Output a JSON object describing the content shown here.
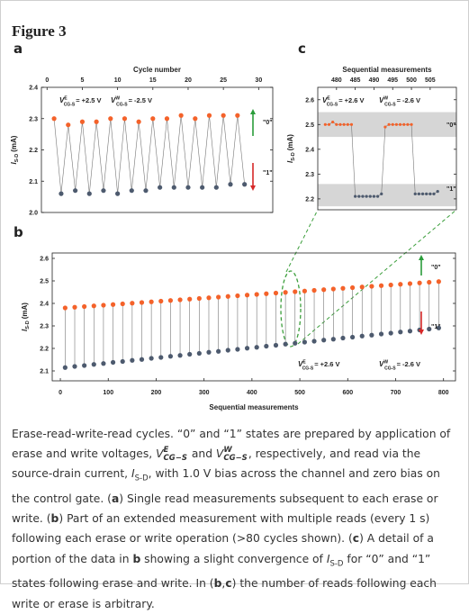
{
  "figure_label": "Figure 3",
  "chart_data": [
    {
      "type": "line",
      "panel_label": "a",
      "x_label": "Cycle number",
      "y_label": {
        "symbol": "I",
        "sub": "S-D",
        "unit": "(mA)"
      },
      "xlim": [
        -0.8,
        32
      ],
      "xticks": [
        0,
        5,
        10,
        15,
        20,
        25,
        30
      ],
      "ylim": [
        2.0,
        2.4
      ],
      "yticks": [
        {
          "value": 2.0,
          "label": "2.0"
        },
        2.1,
        2.2,
        2.3,
        2.4
      ],
      "series": [
        {
          "color": "#f4622a",
          "x": [
            1,
            3,
            5,
            7,
            9,
            11,
            13,
            15,
            17,
            19,
            21,
            23,
            25,
            27
          ],
          "values": [
            2.3,
            2.28,
            2.29,
            2.29,
            2.3,
            2.3,
            2.29,
            2.3,
            2.3,
            2.31,
            2.3,
            2.31,
            2.31,
            2.31
          ]
        },
        {
          "color": "#4d5a6e",
          "x": [
            2,
            4,
            6,
            8,
            10,
            12,
            14,
            16,
            18,
            20,
            22,
            24,
            26,
            28
          ],
          "values": [
            2.06,
            2.07,
            2.06,
            2.07,
            2.06,
            2.07,
            2.07,
            2.08,
            2.08,
            2.08,
            2.08,
            2.08,
            2.09,
            2.09
          ]
        }
      ],
      "voltages": [
        {
          "symbol": "V",
          "sup": "E",
          "sub": "CG-S",
          "text": "= +2.5 V"
        },
        {
          "symbol": "V",
          "sup": "W",
          "sub": "CG-S",
          "text": "= -2.5 V"
        }
      ],
      "state_labels": [
        "\"0\"",
        "\"1\""
      ]
    },
    {
      "type": "dumbbell",
      "panel_label": "b",
      "x_label": "Sequential measurements",
      "y_label": {
        "symbol": "I",
        "sub": "S-D",
        "unit": "(mA)"
      },
      "xlim": [
        -17,
        825
      ],
      "xticks": [
        0,
        100,
        200,
        300,
        400,
        500,
        600,
        700,
        800
      ],
      "ylim": [
        2.056,
        2.624
      ],
      "yticks": [
        2.1,
        2.2,
        2.3,
        2.4,
        2.5,
        2.6
      ],
      "x": [
        10,
        30,
        50,
        70,
        90,
        110,
        130,
        150,
        170,
        190,
        210,
        230,
        250,
        270,
        290,
        310,
        330,
        350,
        370,
        390,
        410,
        430,
        450,
        470,
        490,
        510,
        530,
        550,
        570,
        590,
        610,
        630,
        650,
        670,
        690,
        710,
        730,
        750,
        770,
        790
      ],
      "series": [
        {
          "color": "#f4622a",
          "values": [
            2.38,
            2.383,
            2.386,
            2.389,
            2.392,
            2.395,
            2.398,
            2.401,
            2.404,
            2.407,
            2.41,
            2.413,
            2.416,
            2.419,
            2.422,
            2.425,
            2.428,
            2.431,
            2.434,
            2.437,
            2.44,
            2.443,
            2.446,
            2.449,
            2.452,
            2.455,
            2.458,
            2.461,
            2.464,
            2.467,
            2.47,
            2.473,
            2.476,
            2.479,
            2.482,
            2.485,
            2.488,
            2.491,
            2.494,
            2.497
          ]
        },
        {
          "color": "#4d5a6e",
          "values": [
            2.115,
            2.12,
            2.124,
            2.129,
            2.133,
            2.138,
            2.142,
            2.147,
            2.151,
            2.156,
            2.16,
            2.165,
            2.169,
            2.174,
            2.178,
            2.183,
            2.187,
            2.192,
            2.196,
            2.201,
            2.205,
            2.21,
            2.214,
            2.219,
            2.223,
            2.228,
            2.232,
            2.237,
            2.241,
            2.246,
            2.25,
            2.255,
            2.259,
            2.264,
            2.268,
            2.273,
            2.277,
            2.282,
            2.286,
            2.291
          ]
        }
      ],
      "voltages": [
        {
          "symbol": "V",
          "sup": "E",
          "sub": "CG-S",
          "text": "= +2.6 V"
        },
        {
          "symbol": "V",
          "sup": "W",
          "sub": "CG-S",
          "text": "= -2.6 V"
        }
      ],
      "state_labels": [
        "\"0\"",
        "\"1\""
      ]
    },
    {
      "type": "line",
      "panel_label": "c",
      "x_label": "Sequential measurements",
      "y_label": {
        "symbol": "I",
        "sub": "S-D",
        "unit": "(mA)"
      },
      "xlim": [
        475,
        512
      ],
      "xticks": [
        480,
        485,
        490,
        495,
        500,
        505
      ],
      "ylim": [
        2.156,
        2.65
      ],
      "yticks": [
        2.2,
        2.3,
        2.4,
        2.5,
        2.6
      ],
      "bands": [
        [
          2.45,
          2.55
        ],
        [
          2.17,
          2.26
        ]
      ],
      "x": [
        477,
        478,
        479,
        480,
        481,
        482,
        483,
        484,
        485,
        486,
        487,
        488,
        489,
        490,
        491,
        492,
        493,
        494,
        495,
        496,
        497,
        498,
        499,
        500,
        501,
        502,
        503,
        504,
        505,
        506,
        507
      ],
      "series": [
        {
          "color": "#f4622a",
          "values": [
            2.5,
            2.5,
            2.51,
            2.5,
            2.5,
            2.5,
            2.5,
            2.5,
            null,
            null,
            null,
            null,
            null,
            null,
            null,
            null,
            2.49,
            2.5,
            2.5,
            2.5,
            2.5,
            2.5,
            2.5,
            2.5,
            null,
            null,
            null,
            null,
            null,
            null,
            null
          ]
        },
        {
          "color": "#4d5a6e",
          "values": [
            null,
            null,
            null,
            null,
            null,
            null,
            null,
            null,
            2.21,
            2.21,
            2.21,
            2.21,
            2.21,
            2.21,
            2.21,
            2.22,
            null,
            null,
            null,
            null,
            null,
            null,
            null,
            null,
            2.22,
            2.22,
            2.22,
            2.22,
            2.22,
            2.22,
            2.23
          ]
        }
      ],
      "voltages": [
        {
          "symbol": "V",
          "sup": "E",
          "sub": "CG-S",
          "text": "= +2.6 V"
        },
        {
          "symbol": "V",
          "sup": "W",
          "sub": "CG-S",
          "text": "= -2.6 V"
        }
      ],
      "state_labels": [
        "\"0\"",
        "\"1\""
      ]
    }
  ],
  "caption": [
    "Erase-read-write-read cycles. “0” and “1” states are prepared by application of erase and write voltages, ",
    "V",
    "E",
    "CG−S",
    " and ",
    "V",
    "W",
    "CG−S",
    ", respectively, and read via the source-drain current, ",
    "I",
    "S-D",
    ", with 1.0 V bias across the channel and zero bias on the control gate. (",
    "a",
    ") Single read measurements subsequent to each erase or write. (",
    "b",
    ") Part of an extended measurement with multiple reads (every 1 s) following each erase or write operation (>80 cycles shown). (",
    "c",
    ") A detail of a portion of the data in ",
    "b",
    " showing a slight convergence of ",
    "I",
    "S-D",
    " for “0” and “1” states following erase and write. In (",
    "b",
    ",",
    "c",
    ") the number of reads following each write or erase is arbitrary."
  ]
}
